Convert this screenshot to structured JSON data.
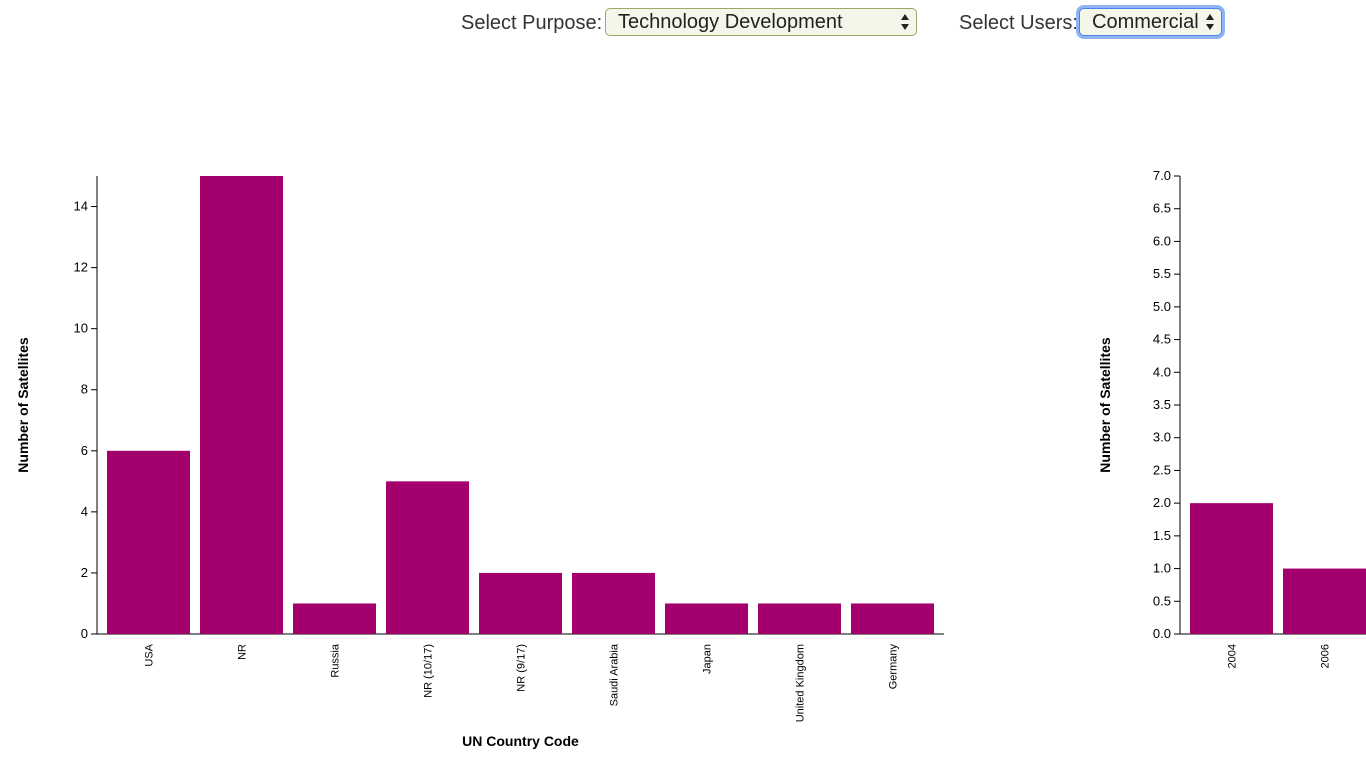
{
  "controls": {
    "purpose_label": "Select Purpose:",
    "purpose_value": "Technology Development",
    "users_label": "Select Users:",
    "users_value": "Commercial"
  },
  "colors": {
    "bar": "#a3006d",
    "axis": "#000000"
  },
  "chart_data": [
    {
      "type": "bar",
      "title": "",
      "xlabel": "UN Country Code",
      "ylabel": "Number of Satellites",
      "categories": [
        "USA",
        "NR",
        "Russia",
        "NR (10/17)",
        "NR (9/17)",
        "Saudi Arabia",
        "Japan",
        "United Kingdom",
        "Germany"
      ],
      "values": [
        6,
        15,
        1,
        5,
        2,
        2,
        1,
        1,
        1
      ],
      "ylim": [
        0,
        15
      ],
      "yticks": [
        "0",
        "2",
        "4",
        "6",
        "8",
        "10",
        "12",
        "14"
      ],
      "grid": false
    },
    {
      "type": "bar",
      "title": "",
      "xlabel": "",
      "ylabel": "Number of Satellites",
      "categories": [
        "2004",
        "2006"
      ],
      "values": [
        2,
        1
      ],
      "ylim": [
        0,
        7
      ],
      "yticks": [
        "0.0",
        "0.5",
        "1.0",
        "1.5",
        "2.0",
        "2.5",
        "3.0",
        "3.5",
        "4.0",
        "4.5",
        "5.0",
        "5.5",
        "6.0",
        "6.5",
        "7.0"
      ],
      "grid": false
    }
  ]
}
